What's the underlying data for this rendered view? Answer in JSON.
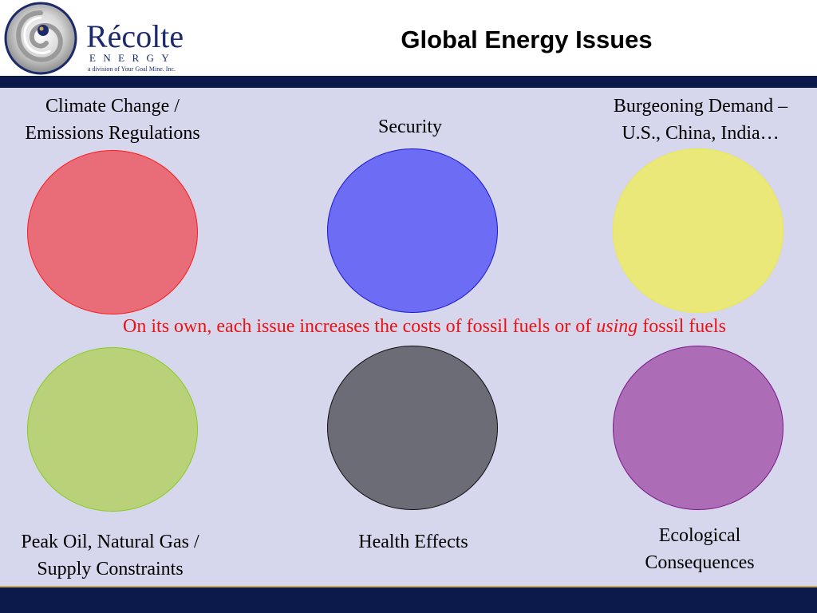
{
  "logo": {
    "name": "Récolte",
    "subtitle": "ENERGY",
    "tagline": "a division of Your Goal Mine. Inc."
  },
  "slide": {
    "title": "Global Energy Issues"
  },
  "issues": [
    {
      "line1": "Climate Change /",
      "line2": "Emissions Regulations",
      "color": "#e86d78"
    },
    {
      "line1": "Security",
      "line2": "",
      "color": "#6c6cf4"
    },
    {
      "line1": "Burgeoning Demand –",
      "line2": "U.S., China, India…",
      "color": "#eae878"
    },
    {
      "line1": "Peak Oil, Natural Gas /",
      "line2": "Supply Constraints",
      "color": "#b9d27a"
    },
    {
      "line1": "Health Effects",
      "line2": "",
      "color": "#6c6c76"
    },
    {
      "line1": "Ecological",
      "line2": "Consequences",
      "color": "#ac6cb6"
    }
  ],
  "statement": {
    "before": "On its own, each issue increases the costs of fossil fuels or of ",
    "emphasis": "using",
    "after": " fossil fuels",
    "color": "#ee1111"
  },
  "colors": {
    "bar": "#0b1a4a",
    "background": "#d6d6ec",
    "logo_text": "#1c2a6b"
  }
}
